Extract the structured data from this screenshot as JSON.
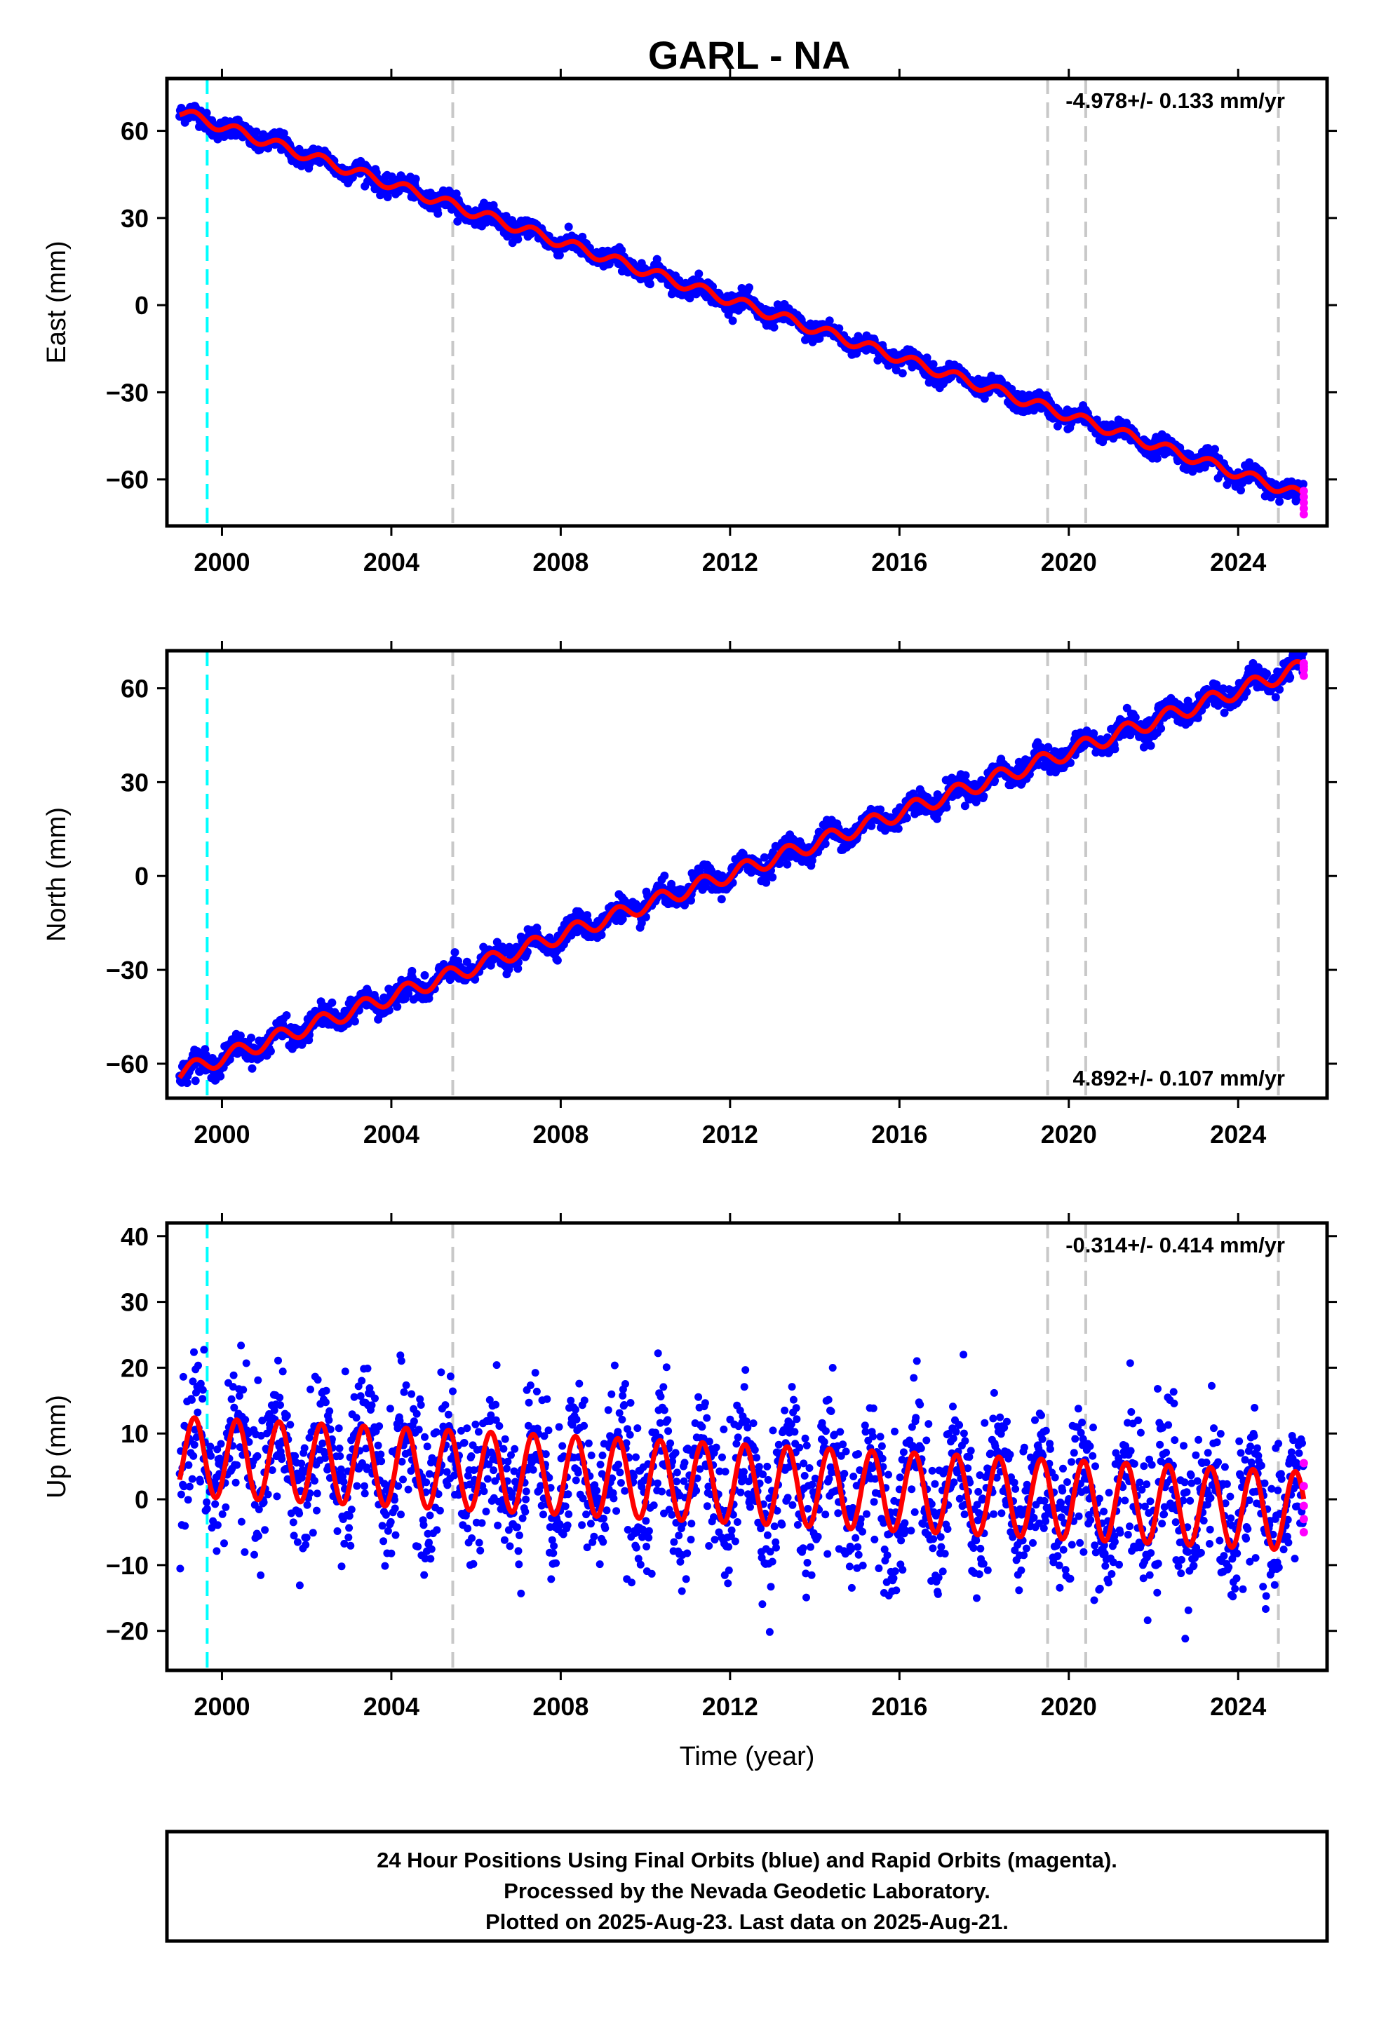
{
  "title": "GARL - NA",
  "colors": {
    "final_orbits": "#0000ff",
    "rapid_orbits": "#ff00ff",
    "model": "#ff0000",
    "antenna_change": "#00ffff",
    "other_event": "#c8c8c8"
  },
  "chart_data": [
    {
      "type": "scatter",
      "component": "east",
      "ylabel": "East (mm)",
      "xlabel": "",
      "xlim": [
        1998.7,
        2026.1
      ],
      "ylim": [
        -76,
        78
      ],
      "xticks": [
        2000,
        2004,
        2008,
        2012,
        2016,
        2020,
        2024
      ],
      "yticks": [
        -60,
        -30,
        0,
        30,
        60
      ],
      "rate_text": "-4.978+/- 0.133 mm/yr",
      "rate_position": "top-right",
      "trend": {
        "start_year": 1999.0,
        "start_mm": 66.5,
        "rate_mm_per_yr": -4.978,
        "seasonal_amp_mm": 1.8,
        "noise_mm": 1.6
      },
      "model_points": [
        [
          1999.0,
          67.5
        ],
        [
          2001.0,
          57.0
        ],
        [
          2004.0,
          42.0
        ],
        [
          2008.0,
          22.0
        ],
        [
          2012.0,
          2.0
        ],
        [
          2016.0,
          -18.0
        ],
        [
          2020.0,
          -36.0
        ],
        [
          2024.0,
          -58.0
        ],
        [
          2025.55,
          -69.0
        ]
      ],
      "rapid_values": [
        -64,
        -66,
        -68,
        -70,
        -72
      ],
      "events_cyan": [
        1999.65
      ],
      "events_gray": [
        2005.45,
        2019.5,
        2020.4,
        2024.95
      ]
    },
    {
      "type": "scatter",
      "component": "north",
      "ylabel": "North (mm)",
      "xlabel": "",
      "xlim": [
        1998.7,
        2026.1
      ],
      "ylim": [
        -71,
        72
      ],
      "xticks": [
        2000,
        2004,
        2008,
        2012,
        2016,
        2020,
        2024
      ],
      "yticks": [
        -60,
        -30,
        0,
        30,
        60
      ],
      "rate_text": "4.892+/- 0.107 mm/yr",
      "rate_position": "bottom-right",
      "trend": {
        "start_year": 1999.0,
        "start_mm": -63.0,
        "rate_mm_per_yr": 4.892,
        "seasonal_amp_mm": 2.5,
        "noise_mm": 1.8
      },
      "model_points": [
        [
          1999.0,
          -64.0
        ],
        [
          2001.0,
          -56.0
        ],
        [
          2004.0,
          -40.0
        ],
        [
          2008.0,
          -20.0
        ],
        [
          2012.0,
          -2.0
        ],
        [
          2016.0,
          18.0
        ],
        [
          2020.0,
          37.0
        ],
        [
          2024.0,
          56.0
        ],
        [
          2025.55,
          66.0
        ]
      ],
      "rapid_values": [
        64,
        66,
        67,
        68
      ],
      "events_cyan": [
        1999.65
      ],
      "events_gray": [
        2005.45,
        2019.5,
        2020.4,
        2024.95
      ]
    },
    {
      "type": "scatter",
      "component": "up",
      "ylabel": "Up (mm)",
      "xlabel": "Time (year)",
      "xlim": [
        1998.7,
        2026.1
      ],
      "ylim": [
        -26,
        42
      ],
      "xticks": [
        2000,
        2004,
        2008,
        2012,
        2016,
        2020,
        2024
      ],
      "yticks": [
        -20,
        -10,
        0,
        10,
        20,
        30,
        40
      ],
      "rate_text": "-0.314+/- 0.414 mm/yr",
      "rate_position": "top-right",
      "trend": {
        "start_year": 1999.0,
        "start_mm": 6.5,
        "rate_mm_per_yr": -0.314,
        "seasonal_amp_mm": 6.0,
        "noise_mm": 5.5
      },
      "model_points": [
        [
          1999.0,
          4.5
        ],
        [
          1999.5,
          12.5
        ],
        [
          2004.0,
          6.0
        ],
        [
          2008.0,
          1.0
        ],
        [
          2012.0,
          0.5
        ],
        [
          2016.0,
          -1.0
        ],
        [
          2020.0,
          -5.0
        ],
        [
          2024.0,
          -6.0
        ],
        [
          2025.55,
          -5.0
        ]
      ],
      "rapid_values": [
        5.5,
        2.0,
        -1.0,
        -3.0,
        -5.0
      ],
      "events_cyan": [
        1999.65
      ],
      "events_gray": [
        2005.45,
        2019.5,
        2020.4,
        2024.95
      ]
    }
  ],
  "footer": {
    "line1": "24 Hour Positions Using Final Orbits (blue) and Rapid Orbits (magenta).",
    "line2": "Processed by the Nevada Geodetic Laboratory.",
    "line3": "Plotted on 2025-Aug-23. Last data on 2025-Aug-21."
  }
}
